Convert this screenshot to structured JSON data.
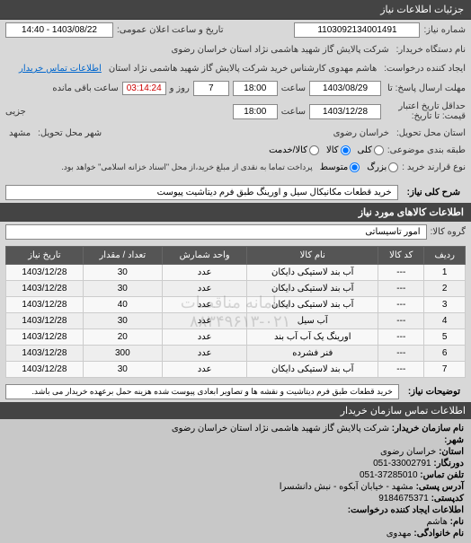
{
  "header": {
    "title": "جزئیات اطلاعات نیاز"
  },
  "top": {
    "request_no_label": "شماره نیاز:",
    "request_no": "1103092134001491",
    "announce_label": "تاریخ و ساعت اعلان عمومی:",
    "announce_value": "1403/08/22 - 14:40",
    "buyer_org_label": "نام دستگاه خریدار:",
    "buyer_org": "شرکت پالایش گاز شهید هاشمی نژاد    استان خراسان رضوی",
    "creator_label": "ایجاد کننده درخواست:",
    "creator": "هاشم مهدوی کارشناس خرید شرکت پالایش گاز شهید هاشمی نژاد    استان",
    "contact_link": "اطلاعات تماس خریدار",
    "deadline_label": "مهلت ارسال پاسخ: تا",
    "deadline_date": "1403/08/29",
    "time_label": "ساعت",
    "deadline_time": "18:00",
    "days_remain": "7",
    "days_label": "روز و",
    "time_remain": "03:14:24",
    "time_remain_label": "ساعت باقی مانده",
    "validity_label": "حداقل تاریخ اعتبار\nقیمت: تا تاریخ:",
    "validity_date": "1403/12/28",
    "validity_time": "18:00",
    "currency_label": "جزیی",
    "delivery_province_label": "استان محل تحویل:",
    "delivery_province": "خراسان رضوی",
    "delivery_city_label": "شهر محل تحویل:",
    "delivery_city": "مشهد",
    "packaging_label": "طبقه بندی موضوعی:",
    "contract_type_label": "نوع قرارند خرید :",
    "contract_note": "پرداخت تماما به نقدی از مبلغ خرید،از محل \"اسناد خزانه اسلامی\" خواهد بود."
  },
  "radios": {
    "pkg": [
      {
        "label": "کلی",
        "checked": false
      },
      {
        "label": "کالا",
        "checked": true
      },
      {
        "label": "کالا/خدمت",
        "checked": false
      }
    ],
    "contract": [
      {
        "label": "بزرگ",
        "checked": false
      },
      {
        "label": "متوسط",
        "checked": true
      }
    ]
  },
  "need": {
    "title_label": "شرح کلی نیاز:",
    "title": "خرید قطعات مکانیکال سیل و اورینگ طبق فرم دیتاشیت پیوست"
  },
  "goods": {
    "section_title": "اطلاعات کالاهای مورد نیاز",
    "group_label": "گروه کالا:",
    "group_value": "امور تاسیساتی"
  },
  "table": {
    "columns": [
      "ردیف",
      "کد کالا",
      "نام کالا",
      "واحد شمارش",
      "تعداد / مقدار",
      "تاریخ نیاز"
    ],
    "rows": [
      [
        "1",
        "---",
        "آب بند لاستیکی دایکان",
        "عدد",
        "30",
        "1403/12/28"
      ],
      [
        "2",
        "---",
        "آب بند لاستیکی دایکان",
        "عدد",
        "30",
        "1403/12/28"
      ],
      [
        "3",
        "---",
        "آب بند لاستیکی دایکان",
        "عدد",
        "40",
        "1403/12/28"
      ],
      [
        "4",
        "---",
        "آب سیل",
        "عدد",
        "30",
        "1403/12/28"
      ],
      [
        "5",
        "---",
        "اورینگ یک آب آب بند",
        "عدد",
        "20",
        "1403/12/28"
      ],
      [
        "6",
        "---",
        "فنر فشرده",
        "عدد",
        "300",
        "1403/12/28"
      ],
      [
        "7",
        "---",
        "آب بند لاستیکی دایکان",
        "عدد",
        "30",
        "1403/12/28"
      ]
    ],
    "watermark1": "سامانه مناقصات",
    "watermark2": "۸۸۳۴۹۶۱۳-۰۲۱"
  },
  "description": {
    "label": "توضیحات نیاز:",
    "text": "خرید قطعات طبق فرم دیتاشیت و نقشه ها و تصاویر ابعادی پیوست شده هزینه حمل برعهده خریدار می باشد."
  },
  "footer": {
    "title": "اطلاعات تماس سازمان خریدار",
    "org_label": "نام سازمان خریدار:",
    "org": "شرکت پالایش گاز شهید هاشمی نژاد استان خراسان رضوی",
    "city_label": "شهر:",
    "city": "",
    "province_label": "استان:",
    "province": "خراسان رضوی",
    "office_label": "دورنگار:",
    "office": "33002791-051",
    "phone_label": "تلفن تماس:",
    "phone": "37285010-051",
    "address_label": "آدرس پستی:",
    "address": "مشهد - خیابان آبکوه - نبش دانشسرا",
    "postal_label": "کدپستی:",
    "postal": "9184675371",
    "creator_section": "اطلاعات ایجاد کننده درخواست:",
    "name_label": "نام:",
    "name": "هاشم",
    "family_label": "نام خانوادگی:",
    "family": "مهدوی"
  }
}
